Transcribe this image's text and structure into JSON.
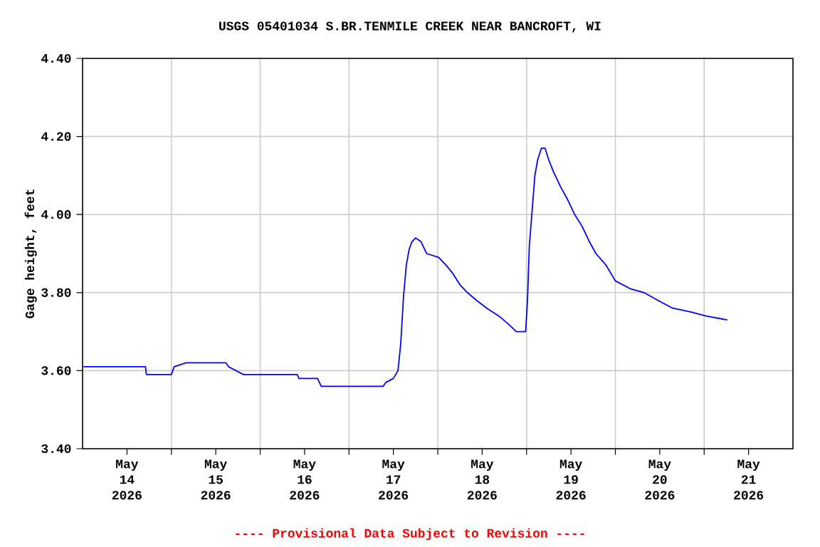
{
  "chart_data": {
    "type": "line",
    "title": "USGS 05401034 S.BR.TENMILE CREEK NEAR BANCROFT, WI",
    "ylabel": "Gage height, feet",
    "annotations": [
      "---- Provisional Data Subject to Revision ----"
    ],
    "xlim": [
      "2026-05-14T00:00",
      "2026-05-22T00:00"
    ],
    "xticks": [
      {
        "value": "2026-05-14T12:00",
        "label": "May 14 2026"
      },
      {
        "value": "2026-05-15T12:00",
        "label": "May 15 2026"
      },
      {
        "value": "2026-05-16T12:00",
        "label": "May 16 2026"
      },
      {
        "value": "2026-05-17T12:00",
        "label": "May 17 2026"
      },
      {
        "value": "2026-05-18T12:00",
        "label": "May 18 2026"
      },
      {
        "value": "2026-05-19T12:00",
        "label": "May 19 2026"
      },
      {
        "value": "2026-05-20T12:00",
        "label": "May 20 2026"
      },
      {
        "value": "2026-05-21T12:00",
        "label": "May 21 2026"
      },
      {
        "value": "2026-05-15T00:00",
        "label": null
      },
      {
        "value": "2026-05-16T00:00",
        "label": null
      },
      {
        "value": "2026-05-17T00:00",
        "label": null
      },
      {
        "value": "2026-05-18T00:00",
        "label": null
      },
      {
        "value": "2026-05-19T00:00",
        "label": null
      },
      {
        "value": "2026-05-20T00:00",
        "label": null
      },
      {
        "value": "2026-05-21T00:00",
        "label": null
      }
    ],
    "ylim": [
      3.4,
      4.4
    ],
    "yticks": [
      {
        "value": 3.4,
        "label": "3.40"
      },
      {
        "value": 3.6,
        "label": "3.60"
      },
      {
        "value": 3.8,
        "label": "3.80"
      },
      {
        "value": 4.0,
        "label": "4.00"
      },
      {
        "value": 4.2,
        "label": "4.20"
      },
      {
        "value": 4.4,
        "label": "4.40"
      }
    ],
    "grid": true,
    "marker": "none",
    "line_style": "solid",
    "series": [
      {
        "color": "#0000ff",
        "x": [
          "2026-05-14T00:15",
          "2026-05-14T17:00",
          "2026-05-14T17:15",
          "2026-05-15T00:00",
          "2026-05-15T00:45",
          "2026-05-15T04:00",
          "2026-05-15T14:45",
          "2026-05-15T15:30",
          "2026-05-15T17:30",
          "2026-05-15T19:30",
          "2026-05-16T10:00",
          "2026-05-16T10:30",
          "2026-05-16T15:30",
          "2026-05-16T16:30",
          "2026-05-17T09:15",
          "2026-05-17T10:00",
          "2026-05-17T12:00",
          "2026-05-17T13:15",
          "2026-05-17T14:00",
          "2026-05-17T14:45",
          "2026-05-17T15:30",
          "2026-05-17T16:15",
          "2026-05-17T17:00",
          "2026-05-17T18:00",
          "2026-05-17T19:30",
          "2026-05-17T21:00",
          "2026-05-18T00:15",
          "2026-05-18T02:15",
          "2026-05-18T04:00",
          "2026-05-18T06:00",
          "2026-05-18T08:00",
          "2026-05-18T10:30",
          "2026-05-18T13:15",
          "2026-05-18T16:30",
          "2026-05-18T19:00",
          "2026-05-18T21:15",
          "2026-05-18T23:45",
          "2026-05-19T00:15",
          "2026-05-19T00:45",
          "2026-05-19T01:30",
          "2026-05-19T02:15",
          "2026-05-19T03:00",
          "2026-05-19T04:00",
          "2026-05-19T05:00",
          "2026-05-19T06:00",
          "2026-05-19T07:15",
          "2026-05-19T09:15",
          "2026-05-19T11:00",
          "2026-05-19T13:00",
          "2026-05-19T15:00",
          "2026-05-19T17:00",
          "2026-05-19T18:45",
          "2026-05-19T21:30",
          "2026-05-20T00:00",
          "2026-05-20T04:00",
          "2026-05-20T07:45",
          "2026-05-20T11:30",
          "2026-05-20T15:30",
          "2026-05-20T20:30",
          "2026-05-21T00:30",
          "2026-05-21T06:15"
        ],
        "values": [
          3.61,
          3.61,
          3.59,
          3.59,
          3.61,
          3.62,
          3.62,
          3.61,
          3.6,
          3.59,
          3.59,
          3.58,
          3.58,
          3.56,
          3.56,
          3.57,
          3.58,
          3.6,
          3.67,
          3.79,
          3.87,
          3.91,
          3.93,
          3.94,
          3.93,
          3.9,
          3.89,
          3.87,
          3.85,
          3.82,
          3.8,
          3.78,
          3.76,
          3.74,
          3.72,
          3.7,
          3.7,
          3.78,
          3.92,
          4.01,
          4.1,
          4.14,
          4.17,
          4.17,
          4.14,
          4.11,
          4.07,
          4.04,
          4.0,
          3.97,
          3.93,
          3.9,
          3.87,
          3.83,
          3.81,
          3.8,
          3.78,
          3.76,
          3.75,
          3.74,
          3.73
        ]
      }
    ]
  }
}
